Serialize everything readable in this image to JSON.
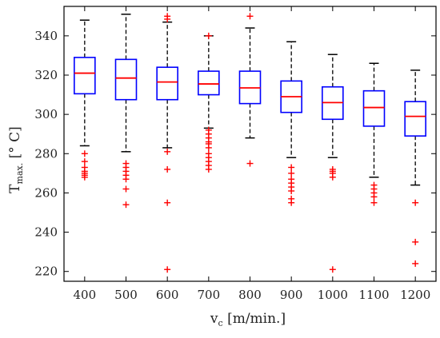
{
  "chart_data": {
    "type": "boxplot",
    "xlabel": "v",
    "xlabel_sub": "c",
    "xlabel_unit": " [m/min.]",
    "ylabel": "T",
    "ylabel_sub": "max.",
    "ylabel_unit": " [° C]",
    "ylim": [
      215,
      355
    ],
    "yticks": [
      220,
      240,
      260,
      280,
      300,
      320,
      340
    ],
    "categories": [
      "400",
      "500",
      "600",
      "700",
      "800",
      "900",
      "1000",
      "1100",
      "1200"
    ],
    "boxes": [
      {
        "category": "400",
        "whisker_low": 284,
        "q1": 310.5,
        "median": 321,
        "q3": 329,
        "whisker_high": 348,
        "outliers": [
          280,
          276,
          273,
          271,
          270,
          269,
          268
        ]
      },
      {
        "category": "500",
        "whisker_low": 281,
        "q1": 307.5,
        "median": 318.5,
        "q3": 328,
        "whisker_high": 351,
        "outliers": [
          275,
          273,
          271,
          269,
          267,
          262,
          254
        ]
      },
      {
        "category": "600",
        "whisker_low": 283,
        "q1": 307.5,
        "median": 316.5,
        "q3": 324,
        "whisker_high": 347,
        "outliers": [
          350,
          348.5,
          281,
          272,
          255,
          221
        ]
      },
      {
        "category": "700",
        "whisker_low": 293,
        "q1": 310,
        "median": 315.5,
        "q3": 322,
        "whisker_high": 340,
        "outliers": [
          340,
          292,
          290,
          288,
          286,
          285,
          283,
          280,
          278,
          276,
          274,
          272
        ]
      },
      {
        "category": "800",
        "whisker_low": 288,
        "q1": 305.5,
        "median": 313.5,
        "q3": 322,
        "whisker_high": 344,
        "outliers": [
          350,
          275
        ]
      },
      {
        "category": "900",
        "whisker_low": 278,
        "q1": 301,
        "median": 309,
        "q3": 317,
        "whisker_high": 337,
        "outliers": [
          273,
          270,
          267,
          265,
          263,
          261,
          257,
          255
        ]
      },
      {
        "category": "1000",
        "whisker_low": 278,
        "q1": 297.5,
        "median": 306,
        "q3": 314,
        "whisker_high": 330.5,
        "outliers": [
          272,
          271,
          270,
          268,
          221
        ]
      },
      {
        "category": "1100",
        "whisker_low": 268,
        "q1": 294,
        "median": 303.5,
        "q3": 312,
        "whisker_high": 326,
        "outliers": [
          264,
          262,
          260,
          258,
          255
        ]
      },
      {
        "category": "1200",
        "whisker_low": 264,
        "q1": 289,
        "median": 299,
        "q3": 306.5,
        "whisker_high": 322.5,
        "outliers": [
          255,
          235,
          224
        ]
      }
    ],
    "colors": {
      "box": "#0000ff",
      "median": "#ff0000",
      "whisker": "#000000",
      "outlier": "#ff0000"
    },
    "grid": false
  }
}
